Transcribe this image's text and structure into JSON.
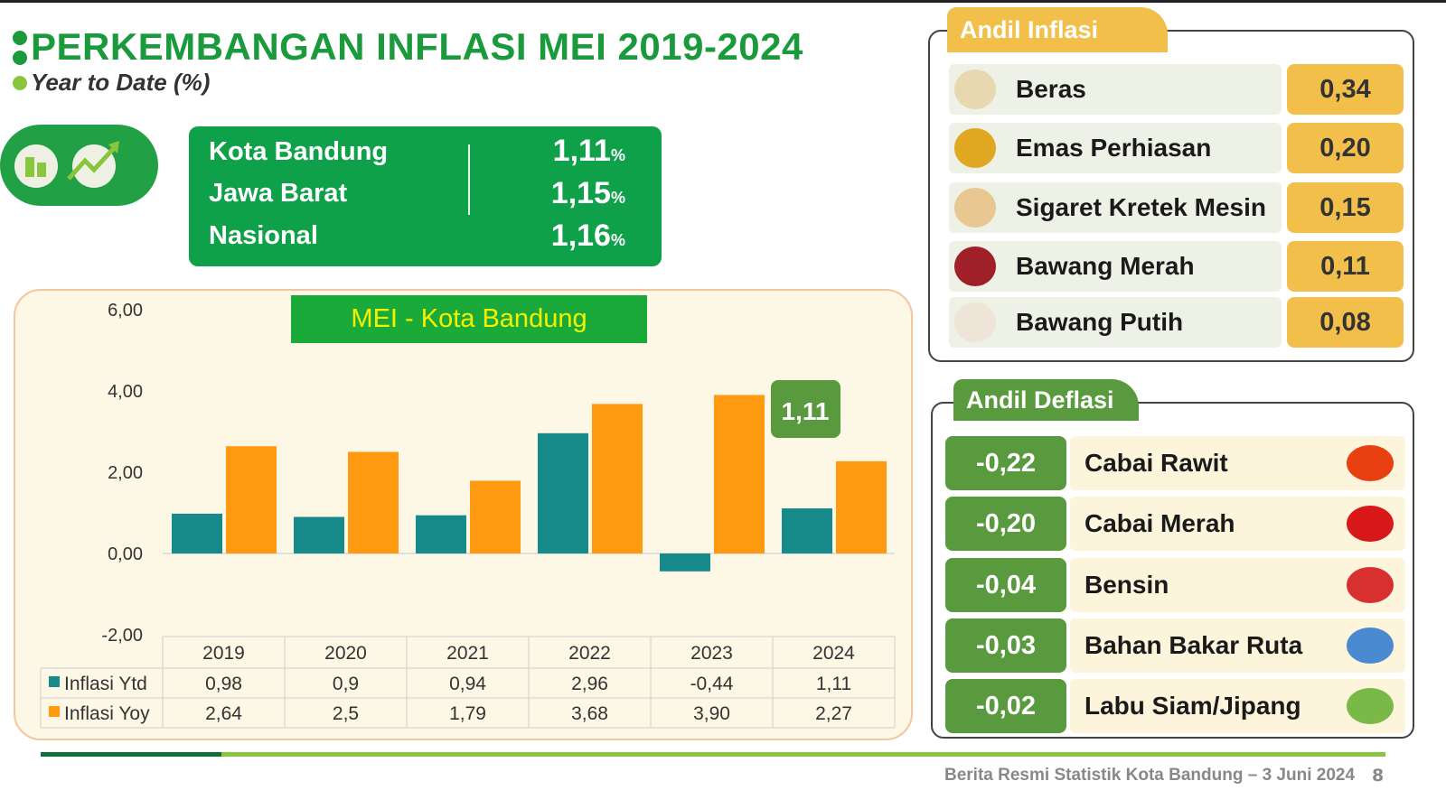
{
  "header": {
    "title": "PERKEMBANGAN INFLASI MEI 2019-2024",
    "subtitle": "Year to Date (%)"
  },
  "summary": [
    {
      "label": "Kota Bandung",
      "value": "1,11",
      "unit": "%"
    },
    {
      "label": "Jawa Barat",
      "value": "1,15",
      "unit": "%"
    },
    {
      "label": "Nasional",
      "value": "1,16",
      "unit": "%"
    }
  ],
  "andil_inflasi": {
    "title": "Andil Inflasi",
    "items": [
      {
        "label": "Beras",
        "value": "0,34",
        "icon": "rice-sack-icon"
      },
      {
        "label": "Emas Perhiasan",
        "value": "0,20",
        "icon": "gold-jewelry-icon"
      },
      {
        "label": "Sigaret Kretek Mesin",
        "value": "0,15",
        "icon": "cigarette-pack-icon"
      },
      {
        "label": "Bawang Merah",
        "value": "0,11",
        "icon": "shallot-icon"
      },
      {
        "label": "Bawang Putih",
        "value": "0,08",
        "icon": "garlic-icon"
      }
    ]
  },
  "andil_deflasi": {
    "title": "Andil Deflasi",
    "items": [
      {
        "label": "Cabai Rawit",
        "value": "-0,22",
        "icon": "bird-chili-icon"
      },
      {
        "label": "Cabai Merah",
        "value": "-0,20",
        "icon": "red-chili-icon"
      },
      {
        "label": "Bensin",
        "value": "-0,04",
        "icon": "fuel-nozzle-icon"
      },
      {
        "label": "Bahan Bakar Ruta",
        "value": "-0,03",
        "icon": "gas-cylinder-icon"
      },
      {
        "label": "Labu Siam/Jipang",
        "value": "-0,02",
        "icon": "chayote-icon"
      }
    ]
  },
  "chart_data": {
    "type": "bar",
    "title": "MEI - Kota Bandung",
    "categories": [
      "2019",
      "2020",
      "2021",
      "2022",
      "2023",
      "2024"
    ],
    "series": [
      {
        "name": "Inflasi Ytd",
        "color": "#168a8a",
        "values": [
          0.98,
          0.9,
          0.94,
          2.96,
          -0.44,
          1.11
        ],
        "labels": [
          "0,98",
          "0,9",
          "0,94",
          "2,96",
          "-0,44",
          "1,11"
        ]
      },
      {
        "name": "Inflasi Yoy",
        "color": "#ff9a10",
        "values": [
          2.64,
          2.5,
          1.79,
          3.68,
          3.9,
          2.27
        ],
        "labels": [
          "2,64",
          "2,5",
          "1,79",
          "3,68",
          "3,90",
          "2,27"
        ]
      }
    ],
    "yticks": [
      "6,00",
      "4,00",
      "2,00",
      "0,00",
      "-2,00"
    ],
    "ytick_values": [
      6,
      4,
      2,
      0,
      -2
    ],
    "ylim": [
      -2,
      6
    ],
    "callout": "1,11",
    "legend": "table-bottom"
  },
  "footer": {
    "text": "Berita Resmi Statistik Kota Bandung –  3 Juni 2024",
    "page": "8"
  }
}
